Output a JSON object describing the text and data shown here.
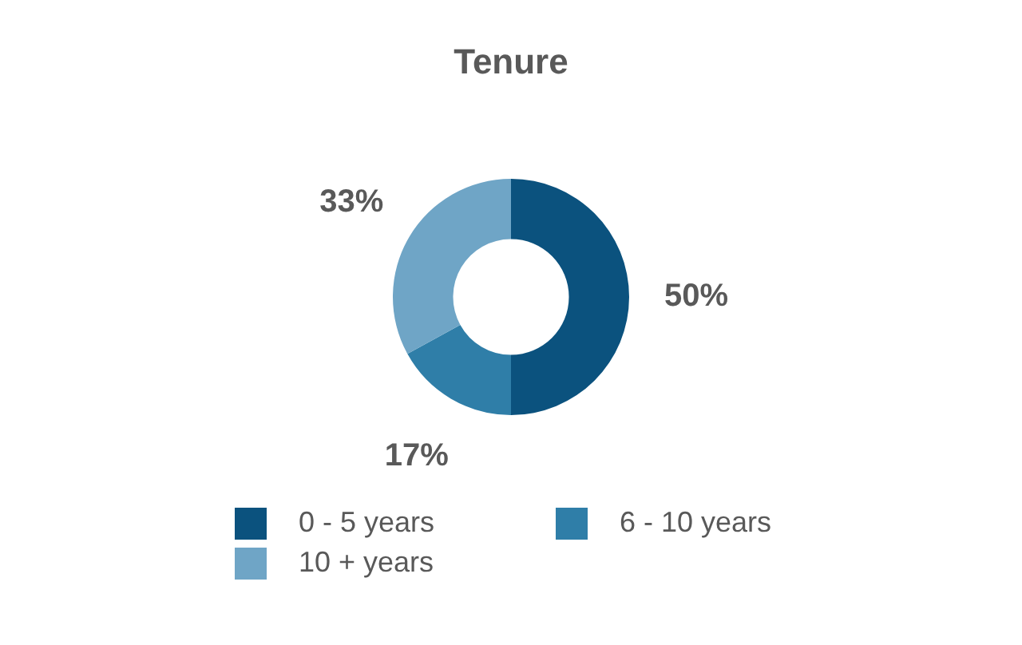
{
  "chart_data": {
    "type": "donut",
    "title": "Tenure",
    "categories": [
      "0 - 5 years",
      "6 - 10 years",
      "10 + years"
    ],
    "values": [
      50,
      17,
      33
    ],
    "colors": [
      "#0b527e",
      "#2f7ea8",
      "#6fa5c6"
    ],
    "legend": "bottom",
    "value_labels": [
      "50%",
      "17%",
      "33%"
    ]
  }
}
